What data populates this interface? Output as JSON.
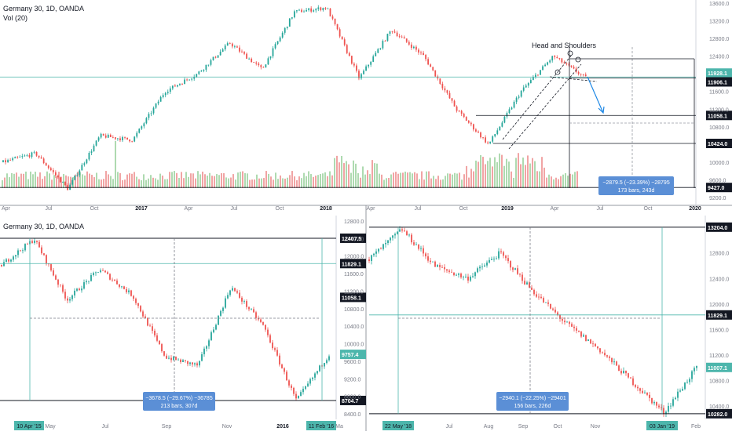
{
  "top": {
    "title": "Germany 30, 1D, OANDA",
    "indicator": "Vol (20)",
    "annotation": "Head and Shoulders",
    "y_ticks": [
      "13600.0",
      "13200.0",
      "12800.0",
      "12400.0",
      "11600.0",
      "11200.0",
      "10800.0",
      "10000.0",
      "9600.0",
      "9200.0"
    ],
    "x_ticks": [
      "Apr",
      "Jul",
      "Oct",
      "2017",
      "Apr",
      "Jul",
      "Oct",
      "2018",
      "Apr",
      "Jul",
      "Oct",
      "2019",
      "Apr",
      "Jul",
      "Oct",
      "2020"
    ],
    "price_tags": [
      {
        "label": "11928.1",
        "color": "#4db6ac"
      },
      {
        "label": "11906.1",
        "color": "#131722"
      },
      {
        "label": "11058.1",
        "color": "#131722"
      },
      {
        "label": "10424.0",
        "color": "#131722"
      },
      {
        "label": "9427.0",
        "color": "#131722"
      }
    ],
    "measure_box": {
      "line1": "−2879.5 (−23.39%) −28795",
      "line2": "173 bars, 243d",
      "color": "#2962ff"
    }
  },
  "bottom_left": {
    "title": "Germany 30, 1D, OANDA",
    "y_ticks": [
      "12800.0",
      "12400.0",
      "12000.0",
      "11600.0",
      "11200.0",
      "10800.0",
      "10400.0",
      "10000.0",
      "9600.0",
      "9200.0",
      "8800.0",
      "8400.0"
    ],
    "x_ticks": [
      "May",
      "Jul",
      "Sep",
      "Nov",
      "2016",
      "Ma"
    ],
    "date_tags": [
      "10 Apr '15",
      "11 Feb '16"
    ],
    "price_tags": [
      {
        "label": "12407.5",
        "color": "#131722"
      },
      {
        "label": "11829.1",
        "color": "#131722"
      },
      {
        "label": "11058.1",
        "color": "#131722"
      },
      {
        "label": "9757.4",
        "color": "#4db6ac"
      },
      {
        "label": "8704.7",
        "color": "#131722"
      }
    ],
    "measure_box": {
      "line1": "−3678.5 (−29.67%) −36785",
      "line2": "213 bars, 307d",
      "color": "#2962ff"
    }
  },
  "bottom_right": {
    "y_ticks": [
      "12800.0",
      "12400.0",
      "12000.0",
      "11600.0",
      "11200.0",
      "10800.0",
      "10400.0"
    ],
    "x_ticks": [
      "Jul",
      "Aug",
      "Sep",
      "Oct",
      "Nov",
      "Feb"
    ],
    "date_tags": [
      "22 May '18",
      "03 Jan '19"
    ],
    "price_tags": [
      {
        "label": "13204.0",
        "color": "#131722"
      },
      {
        "label": "11829.1",
        "color": "#131722"
      },
      {
        "label": "11007.1",
        "color": "#4db6ac"
      },
      {
        "label": "10282.0",
        "color": "#131722"
      }
    ],
    "measure_box": {
      "line1": "−2940.1 (−22.25%) −29401",
      "line2": "156 bars, 226d",
      "color": "#2962ff"
    }
  },
  "chart_data": [
    {
      "type": "candlestick",
      "title": "Germany 30, 1D, OANDA",
      "indicator": "Vol (20)",
      "x_range": [
        "2016-04",
        "2020-01"
      ],
      "ylim": [
        9200,
        13600
      ],
      "approx_close_path": [
        {
          "x": "2016-04",
          "y": 10000
        },
        {
          "x": "2016-06",
          "y": 10200
        },
        {
          "x": "2016-06-24",
          "y": 9400
        },
        {
          "x": "2016-09",
          "y": 10600
        },
        {
          "x": "2016-11",
          "y": 10500
        },
        {
          "x": "2017-01",
          "y": 11600
        },
        {
          "x": "2017-03",
          "y": 12000
        },
        {
          "x": "2017-05",
          "y": 12700
        },
        {
          "x": "2017-08",
          "y": 12100
        },
        {
          "x": "2017-11",
          "y": 13400
        },
        {
          "x": "2018-01",
          "y": 13500
        },
        {
          "x": "2018-03",
          "y": 11900
        },
        {
          "x": "2018-05",
          "y": 13000
        },
        {
          "x": "2018-08",
          "y": 12400
        },
        {
          "x": "2018-10",
          "y": 11200
        },
        {
          "x": "2018-12-27",
          "y": 10400
        },
        {
          "x": "2019-03",
          "y": 11600
        },
        {
          "x": "2019-05-03",
          "y": 12400
        },
        {
          "x": "2019-05-23",
          "y": 11906
        }
      ],
      "levels": [
        11928.1,
        11906.1,
        11058.1,
        10424.0
      ],
      "annotation": "Head and Shoulders"
    },
    {
      "type": "candlestick",
      "title": "Germany 30, 1D, OANDA",
      "x_range": [
        "2015-03",
        "2016-03"
      ],
      "ylim": [
        8400,
        12800
      ],
      "approx_close_path": [
        {
          "x": "2015-03",
          "y": 11800
        },
        {
          "x": "2015-04-10",
          "y": 12390
        },
        {
          "x": "2015-06",
          "y": 11000
        },
        {
          "x": "2015-07",
          "y": 11700
        },
        {
          "x": "2015-08",
          "y": 11100
        },
        {
          "x": "2015-08-24",
          "y": 9700
        },
        {
          "x": "2015-09-24",
          "y": 9500
        },
        {
          "x": "2015-11-30",
          "y": 11300
        },
        {
          "x": "2015-12",
          "y": 10400
        },
        {
          "x": "2016-02-11",
          "y": 8700
        },
        {
          "x": "2016-03",
          "y": 9757
        }
      ],
      "levels": [
        12407.5,
        11829.1,
        11058.1,
        8704.7
      ],
      "measure": {
        "change": -3678.5,
        "percent": -29.67,
        "bars": 213,
        "days": 307
      }
    },
    {
      "type": "candlestick",
      "x_range": [
        "2018-05",
        "2019-02"
      ],
      "ylim": [
        10200,
        13300
      ],
      "approx_close_path": [
        {
          "x": "2018-05-01",
          "y": 12700
        },
        {
          "x": "2018-05-22",
          "y": 13170
        },
        {
          "x": "2018-06",
          "y": 12600
        },
        {
          "x": "2018-07",
          "y": 12400
        },
        {
          "x": "2018-08",
          "y": 12800
        },
        {
          "x": "2018-09",
          "y": 12200
        },
        {
          "x": "2018-10",
          "y": 11700
        },
        {
          "x": "2018-11",
          "y": 11300
        },
        {
          "x": "2018-12",
          "y": 10800
        },
        {
          "x": "2019-01-03",
          "y": 10300
        },
        {
          "x": "2019-02",
          "y": 11007
        }
      ],
      "levels": [
        13204.0,
        11829.1,
        11007.1,
        10282.0
      ],
      "measure": {
        "change": -2940.1,
        "percent": -22.25,
        "bars": 156,
        "days": 226
      }
    }
  ]
}
